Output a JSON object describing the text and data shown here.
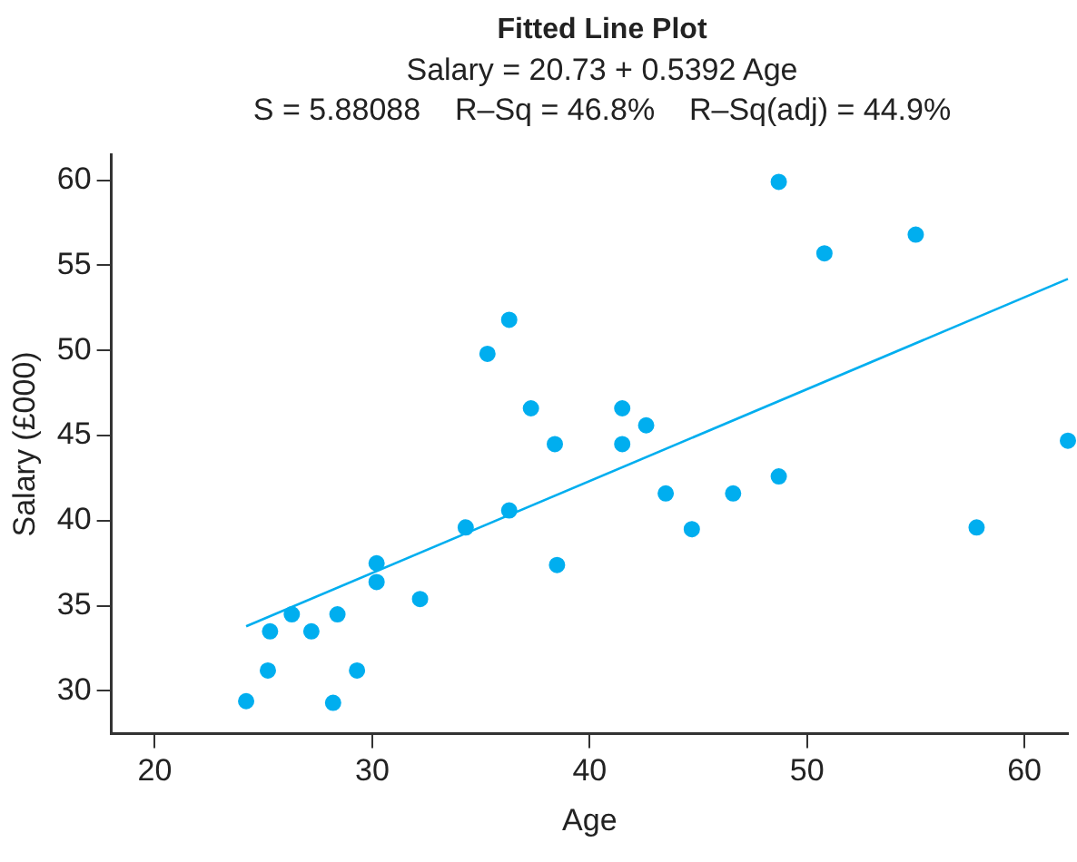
{
  "chart_data": {
    "type": "scatter",
    "title": "Fitted Line Plot",
    "subtitle": "Salary = 20.73 + 0.5392 Age",
    "annotations": [
      "S = 5.88088    R–Sq = 46.8%    R–Sq(adj) = 44.9%"
    ],
    "xlabel": "Age",
    "ylabel": "Salary (£000)",
    "xlim": [
      18,
      62
    ],
    "xticks": [
      20,
      30,
      40,
      50,
      60
    ],
    "ylim": [
      27.5,
      61.5
    ],
    "yticks": [
      30,
      35,
      40,
      45,
      50,
      55,
      60
    ],
    "grid": false,
    "legend": false,
    "marker": "circle",
    "series": [
      {
        "color": "#00aeef",
        "x": [
          24.2,
          25.2,
          25.3,
          26.3,
          27.2,
          28.2,
          28.4,
          29.3,
          30.2,
          30.2,
          32.2,
          34.3,
          35.3,
          36.3,
          36.3,
          37.3,
          38.4,
          38.5,
          41.5,
          41.5,
          42.6,
          43.5,
          44.7,
          46.6,
          48.7,
          48.7,
          50.8,
          55.0,
          57.8,
          62.0
        ],
        "values": [
          29.4,
          31.2,
          33.5,
          34.5,
          33.5,
          29.3,
          34.5,
          31.2,
          36.4,
          37.5,
          35.4,
          39.6,
          49.8,
          51.8,
          40.6,
          46.6,
          44.5,
          37.4,
          46.6,
          44.5,
          45.6,
          41.6,
          39.5,
          41.6,
          42.6,
          59.9,
          55.7,
          56.8,
          39.6,
          44.7
        ]
      },
      {
        "type": "line",
        "color": "#00aeef",
        "x": [
          24.2,
          62
        ],
        "values": [
          33.8,
          54.2
        ],
        "marker": "none"
      }
    ]
  }
}
